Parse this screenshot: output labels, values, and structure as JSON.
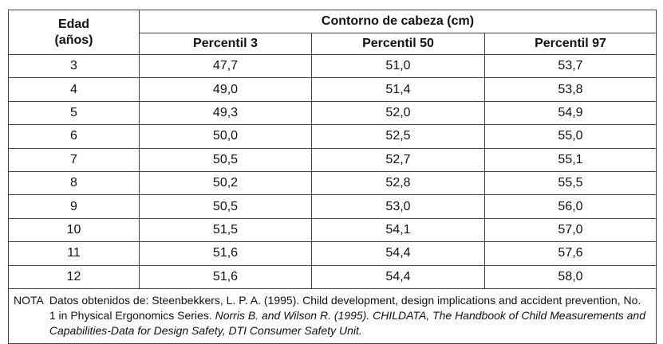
{
  "table": {
    "age_header_line1": "Edad",
    "age_header_line2": "(años)",
    "group_header": "Contorno de cabeza (cm)",
    "percentile_headers": [
      "Percentil 3",
      "Percentil 50",
      "Percentil 97"
    ],
    "rows": [
      {
        "age": "3",
        "p3": "47,7",
        "p50": "51,0",
        "p97": "53,7"
      },
      {
        "age": "4",
        "p3": "49,0",
        "p50": "51,4",
        "p97": "53,8"
      },
      {
        "age": "5",
        "p3": "49,3",
        "p50": "52,0",
        "p97": "54,9"
      },
      {
        "age": "6",
        "p3": "50,0",
        "p50": "52,5",
        "p97": "55,0"
      },
      {
        "age": "7",
        "p3": "50,5",
        "p50": "52,7",
        "p97": "55,1"
      },
      {
        "age": "8",
        "p3": "50,2",
        "p50": "52,8",
        "p97": "55,5"
      },
      {
        "age": "9",
        "p3": "50,5",
        "p50": "53,0",
        "p97": "56,0"
      },
      {
        "age": "10",
        "p3": "51,5",
        "p50": "54,1",
        "p97": "57,0"
      },
      {
        "age": "11",
        "p3": "51,6",
        "p50": "54,4",
        "p97": "57,6"
      },
      {
        "age": "12",
        "p3": "51,6",
        "p50": "54,4",
        "p97": "58,0"
      }
    ]
  },
  "note": {
    "label": "NOTA",
    "text_plain": "Datos obtenidos de: Steenbekkers, L. P. A. (1995). Child development, design implications and accident prevention, No. 1 in Physical Ergonomics Series.",
    "text_italic": "Norris B. and Wilson R. (1995). CHILDATA, The Handbook of Child Measurements and Capabilities-Data for Design Safety, DTI Consumer Safety Unit."
  }
}
